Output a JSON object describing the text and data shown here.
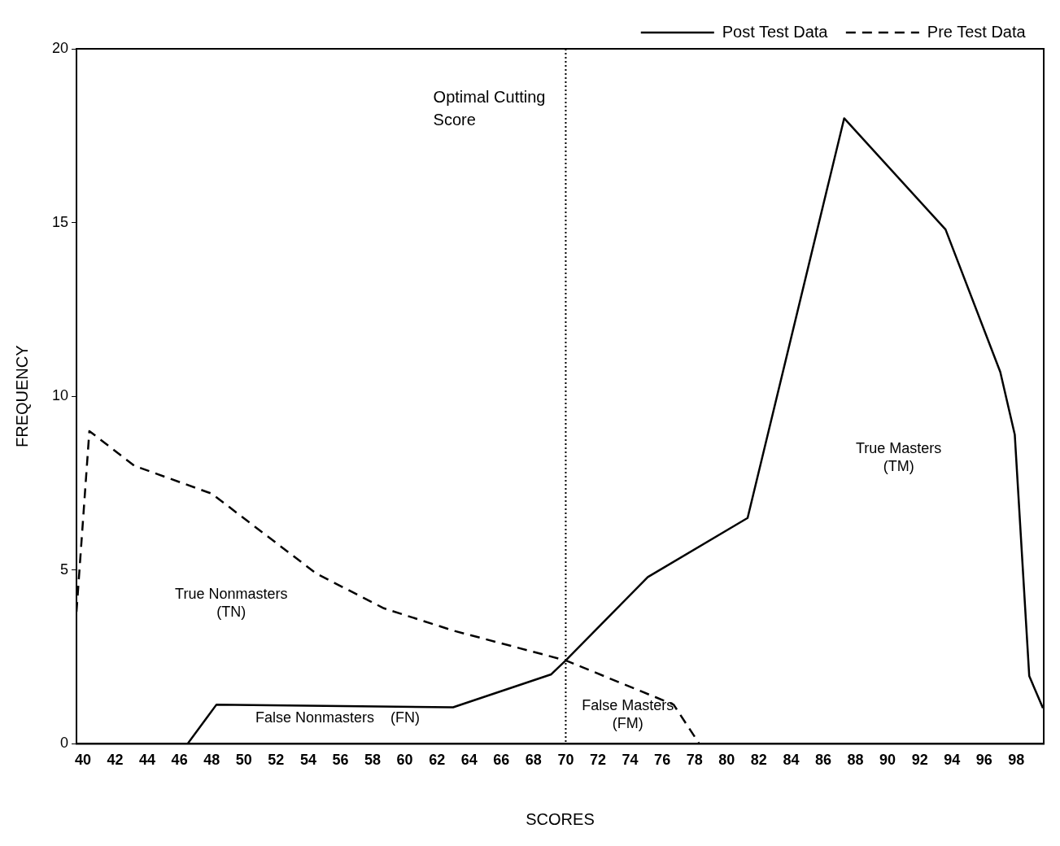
{
  "chart_data": {
    "type": "line",
    "xlabel": "SCORES",
    "ylabel": "FREQUENCY",
    "xlim": [
      39.6,
      99.7
    ],
    "ylim": [
      0,
      20
    ],
    "xticks": [
      40,
      42,
      44,
      46,
      48,
      50,
      52,
      54,
      56,
      58,
      60,
      62,
      64,
      66,
      68,
      70,
      72,
      74,
      76,
      78,
      80,
      82,
      84,
      86,
      88,
      90,
      92,
      94,
      96,
      98
    ],
    "yticks": [
      0,
      5,
      10,
      15,
      20
    ],
    "grid": false,
    "legend": "top right",
    "marker": "none",
    "series": [
      {
        "name": "Post Test Data",
        "color": "#000000",
        "line_style": "solid",
        "x": [
          46.5,
          48.3,
          63.0,
          69.1,
          70.0,
          75.1,
          81.3,
          87.3,
          93.6,
          97.0,
          97.9,
          98.8,
          99.65
        ],
        "values": [
          0,
          1.13,
          1.05,
          2.0,
          2.4,
          4.8,
          6.5,
          18.0,
          14.8,
          10.7,
          8.9,
          1.95,
          1.03
        ]
      },
      {
        "name": "Pre Test Data",
        "color": "#000000",
        "line_style": "dashed",
        "x": [
          39.6,
          40.4,
          43.2,
          48.0,
          54.5,
          58.7,
          63.0,
          70.0,
          76.7,
          78.3
        ],
        "values": [
          3.8,
          9.0,
          8.0,
          7.2,
          4.9,
          3.9,
          3.26,
          2.4,
          1.13,
          0
        ]
      }
    ],
    "ref_lines": [
      {
        "axis": "x",
        "value": 70,
        "label": "Optimal Cutting\nScore",
        "color": "#000000",
        "line_style": "dotted"
      }
    ],
    "annotations": [
      "True Nonmasters\n(TN)",
      "False Nonmasters    (FN)",
      "False Masters\n(FM)",
      "True Masters\n(TM)"
    ]
  }
}
